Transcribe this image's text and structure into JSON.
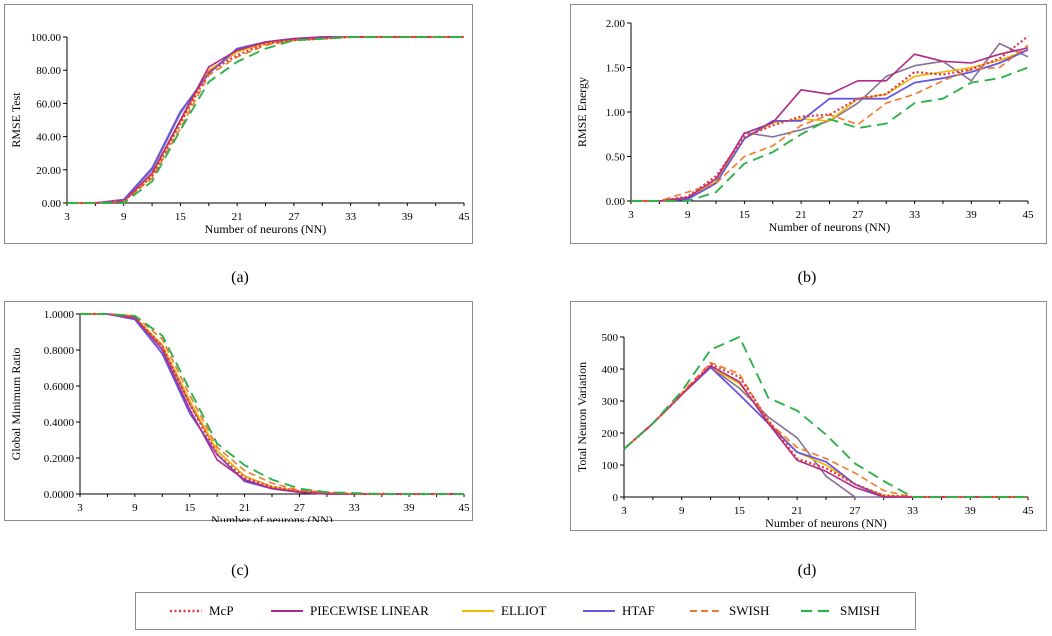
{
  "series_styles": [
    {
      "name": "McP",
      "color": "#e8333f",
      "dash": "2,2.5",
      "width": 2.2
    },
    {
      "name": "PIECEWISE LINEAR",
      "color": "#b02a86",
      "dash": "",
      "width": 1.6
    },
    {
      "name": "ELLIOT",
      "color": "#f3b700",
      "dash": "",
      "width": 1.6
    },
    {
      "name": "HTAF",
      "color": "#6754e0",
      "dash": "",
      "width": 1.8
    },
    {
      "name": "SWISH",
      "color": "#f4792b",
      "dash": "7,4",
      "width": 1.6
    },
    {
      "name": "SMISH",
      "color": "#2fb24c",
      "dash": "11,6",
      "width": 1.9
    }
  ],
  "extra_series_style": {
    "name": "unlabeled",
    "color": "#86709a",
    "dash": "",
    "width": 1.6
  },
  "captions": {
    "a": "(a)",
    "b": "(b)",
    "c": "(c)",
    "d": "(d)"
  },
  "chart_data": [
    {
      "id": "a",
      "type": "line",
      "title": "",
      "xlabel": "Number of neurons (NN)",
      "ylabel": "RMSE Test",
      "x": [
        3,
        6,
        9,
        12,
        15,
        18,
        21,
        24,
        27,
        30,
        33,
        36,
        39,
        42,
        45
      ],
      "xticks": [
        "3",
        "9",
        "15",
        "21",
        "27",
        "33",
        "39",
        "45"
      ],
      "yticks": [
        "0.00",
        "20.00",
        "40.00",
        "60.00",
        "80.00",
        "100.00"
      ],
      "ylim": [
        0,
        100
      ],
      "series": [
        {
          "name": "McP",
          "values": [
            0,
            0,
            1,
            16,
            48,
            79,
            89,
            96,
            98,
            99,
            100,
            100,
            100,
            100,
            100
          ]
        },
        {
          "name": "PIECEWISE LINEAR",
          "values": [
            0,
            0,
            1,
            18,
            50,
            82,
            92,
            97,
            99,
            100,
            100,
            100,
            100,
            100,
            100
          ]
        },
        {
          "name": "ELLIOT",
          "values": [
            0,
            0,
            1,
            17,
            49,
            80,
            91,
            96,
            98,
            99,
            100,
            100,
            100,
            100,
            100
          ]
        },
        {
          "name": "HTAF",
          "values": [
            0,
            0,
            2,
            21,
            55,
            78,
            93,
            97,
            99,
            100,
            100,
            100,
            100,
            100,
            100
          ]
        },
        {
          "name": "SWISH",
          "values": [
            0,
            0,
            1,
            15,
            45,
            77,
            88,
            95,
            98,
            99,
            100,
            100,
            100,
            100,
            100
          ]
        },
        {
          "name": "SMISH",
          "values": [
            0,
            0,
            0,
            13,
            44,
            73,
            85,
            93,
            98,
            99,
            100,
            100,
            100,
            100,
            100
          ]
        },
        {
          "name": "unlabeled",
          "values": [
            0,
            0,
            2,
            20,
            54,
            79,
            91,
            97,
            99,
            100,
            100,
            100,
            100,
            100,
            100
          ]
        }
      ]
    },
    {
      "id": "b",
      "type": "line",
      "title": "",
      "xlabel": "Number of neurons (NN)",
      "ylabel": "RMSE Energy",
      "x": [
        3,
        6,
        9,
        12,
        15,
        18,
        21,
        24,
        27,
        30,
        33,
        36,
        39,
        42,
        45
      ],
      "xticks": [
        "3",
        "9",
        "15",
        "21",
        "27",
        "33",
        "39",
        "45"
      ],
      "yticks": [
        "0.00",
        "0.50",
        "1.00",
        "1.50",
        "2.00"
      ],
      "ylim": [
        0,
        2
      ],
      "series": [
        {
          "name": "McP",
          "values": [
            0,
            0,
            0.05,
            0.28,
            0.72,
            0.85,
            0.95,
            0.97,
            1.15,
            1.2,
            1.45,
            1.42,
            1.48,
            1.6,
            1.85
          ]
        },
        {
          "name": "PIECEWISE LINEAR",
          "values": [
            0,
            0,
            0.04,
            0.25,
            0.76,
            0.88,
            1.25,
            1.2,
            1.35,
            1.35,
            1.65,
            1.57,
            1.55,
            1.65,
            1.72
          ]
        },
        {
          "name": "ELLIOT",
          "values": [
            0,
            0,
            0.03,
            0.22,
            0.7,
            0.88,
            0.92,
            0.9,
            1.15,
            1.2,
            1.4,
            1.45,
            1.5,
            1.58,
            1.7
          ]
        },
        {
          "name": "HTAF",
          "values": [
            0,
            0,
            0.02,
            0.2,
            0.7,
            0.9,
            0.9,
            1.15,
            1.15,
            1.15,
            1.33,
            1.38,
            1.45,
            1.55,
            1.7
          ]
        },
        {
          "name": "SWISH",
          "values": [
            0,
            0,
            0.1,
            0.2,
            0.5,
            0.62,
            0.85,
            0.97,
            0.86,
            1.1,
            1.2,
            1.35,
            1.48,
            1.5,
            1.75
          ]
        },
        {
          "name": "SMISH",
          "values": [
            0,
            0,
            0,
            0.1,
            0.42,
            0.55,
            0.75,
            0.92,
            0.82,
            0.87,
            1.1,
            1.15,
            1.33,
            1.38,
            1.5
          ]
        },
        {
          "name": "unlabeled",
          "values": [
            0,
            0,
            0.02,
            0.22,
            0.77,
            0.72,
            0.8,
            0.9,
            1.1,
            1.4,
            1.52,
            1.57,
            1.35,
            1.77,
            1.62
          ]
        }
      ]
    },
    {
      "id": "c",
      "type": "line",
      "title": "",
      "xlabel": "Number of neurons (NN)",
      "ylabel": "Global Minimum Ratio",
      "x": [
        3,
        6,
        9,
        12,
        15,
        18,
        21,
        24,
        27,
        30,
        33,
        36,
        39,
        42,
        45
      ],
      "xticks": [
        "3",
        "9",
        "15",
        "21",
        "27",
        "33",
        "39",
        "45"
      ],
      "yticks": [
        "0.0000",
        "0.2000",
        "0.4000",
        "0.6000",
        "0.8000",
        "1.0000"
      ],
      "ylim": [
        0,
        1
      ],
      "series": [
        {
          "name": "McP",
          "values": [
            1,
            1,
            0.98,
            0.82,
            0.5,
            0.22,
            0.09,
            0.04,
            0.015,
            0.005,
            0,
            0,
            0,
            0,
            0
          ]
        },
        {
          "name": "PIECEWISE LINEAR",
          "values": [
            1,
            1,
            0.98,
            0.8,
            0.47,
            0.19,
            0.08,
            0.03,
            0.01,
            0,
            0,
            0,
            0,
            0,
            0
          ]
        },
        {
          "name": "ELLIOT",
          "values": [
            1,
            1,
            0.98,
            0.83,
            0.52,
            0.24,
            0.1,
            0.04,
            0.015,
            0.005,
            0,
            0,
            0,
            0,
            0
          ]
        },
        {
          "name": "HTAF",
          "values": [
            1,
            1,
            0.97,
            0.78,
            0.45,
            0.22,
            0.07,
            0.03,
            0.01,
            0,
            0,
            0,
            0,
            0,
            0
          ]
        },
        {
          "name": "SWISH",
          "values": [
            1,
            1,
            0.99,
            0.86,
            0.55,
            0.26,
            0.13,
            0.06,
            0.02,
            0.01,
            0,
            0,
            0,
            0,
            0
          ]
        },
        {
          "name": "SMISH",
          "values": [
            1,
            1,
            0.99,
            0.88,
            0.58,
            0.28,
            0.16,
            0.08,
            0.03,
            0.01,
            0.005,
            0,
            0,
            0,
            0
          ]
        },
        {
          "name": "unlabeled",
          "values": [
            1,
            1,
            0.98,
            0.82,
            0.5,
            0.24,
            0.1,
            0.04,
            0.015,
            0.005,
            0,
            0,
            0,
            0,
            0
          ]
        }
      ]
    },
    {
      "id": "d",
      "type": "line",
      "title": "",
      "xlabel": "Number of neurons (NN)",
      "ylabel": "Total Neuron Variation",
      "x": [
        3,
        6,
        9,
        12,
        15,
        18,
        21,
        24,
        27,
        30,
        33,
        36,
        39,
        42,
        45
      ],
      "xticks": [
        "3",
        "9",
        "15",
        "21",
        "27",
        "33",
        "39",
        "45"
      ],
      "yticks": [
        "0",
        "100",
        "200",
        "300",
        "400",
        "500"
      ],
      "ylim": [
        0,
        500
      ],
      "series": [
        {
          "name": "McP",
          "values": [
            150,
            230,
            320,
            415,
            375,
            240,
            120,
            90,
            40,
            5,
            0,
            0,
            0,
            0,
            0
          ]
        },
        {
          "name": "PIECEWISE LINEAR",
          "values": [
            150,
            230,
            320,
            410,
            360,
            230,
            115,
            80,
            30,
            0,
            0,
            0,
            0,
            0,
            0
          ]
        },
        {
          "name": "ELLIOT",
          "values": [
            150,
            230,
            320,
            405,
            355,
            235,
            140,
            100,
            40,
            5,
            0,
            0,
            0,
            0,
            0
          ]
        },
        {
          "name": "HTAF",
          "values": [
            150,
            230,
            320,
            405,
            320,
            230,
            140,
            110,
            40,
            0,
            0,
            0,
            0,
            0,
            0
          ]
        },
        {
          "name": "SWISH",
          "values": [
            150,
            230,
            325,
            420,
            385,
            235,
            155,
            120,
            75,
            20,
            0,
            0,
            0,
            0,
            0
          ]
        },
        {
          "name": "SMISH",
          "values": [
            150,
            230,
            330,
            460,
            500,
            310,
            270,
            195,
            105,
            50,
            0,
            0,
            0,
            0,
            0
          ]
        },
        {
          "name": "unlabeled",
          "values": [
            150,
            230,
            320,
            405,
            340,
            250,
            185,
            65,
            0,
            0,
            0,
            0,
            0,
            0,
            0
          ]
        }
      ]
    }
  ]
}
